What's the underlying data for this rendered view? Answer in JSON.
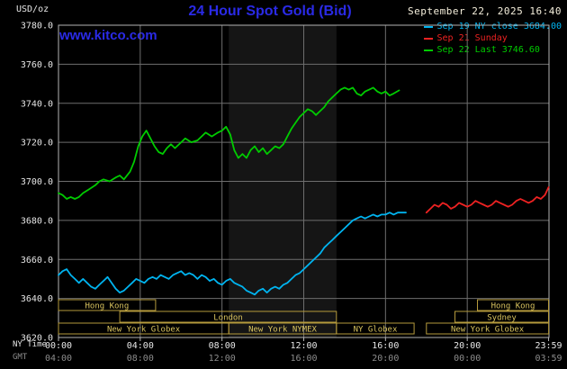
{
  "header": {
    "units": "USD/oz",
    "title": "24 Hour Spot Gold (Bid)",
    "datetime": "September 22, 2025 16:40",
    "watermark": "www.kitco.com"
  },
  "legend": {
    "items": [
      {
        "id": "sep19",
        "label": "Sep 19 NY close 3684.00",
        "color": "#00b4f0"
      },
      {
        "id": "sep21",
        "label": "Sep 21 Sunday",
        "color": "#ee2222"
      },
      {
        "id": "sep22",
        "label": "Sep 22 Last 3746.60",
        "color": "#00cc00"
      }
    ]
  },
  "axes": {
    "row_labels": {
      "ny": "NY Time",
      "gmt": "GMT"
    },
    "y_ticks": [
      {
        "value": 3780,
        "label": "3780.0"
      },
      {
        "value": 3760,
        "label": "3760.0"
      },
      {
        "value": 3740,
        "label": "3740.0"
      },
      {
        "value": 3720,
        "label": "3720.0"
      },
      {
        "value": 3700,
        "label": "3700.0"
      },
      {
        "value": 3680,
        "label": "3680.0"
      },
      {
        "value": 3660,
        "label": "3660.0"
      },
      {
        "value": 3640,
        "label": "3640.0"
      },
      {
        "value": 3620,
        "label": "3620.0"
      }
    ],
    "x_ticks": [
      {
        "hour": 0,
        "ny": "00:00",
        "gmt": "04:00"
      },
      {
        "hour": 4,
        "ny": "04:00",
        "gmt": "08:00"
      },
      {
        "hour": 8,
        "ny": "08:00",
        "gmt": "12:00"
      },
      {
        "hour": 12,
        "ny": "12:00",
        "gmt": "16:00"
      },
      {
        "hour": 16,
        "ny": "16:00",
        "gmt": "20:00"
      },
      {
        "hour": 20,
        "ny": "20:00",
        "gmt": "00:00"
      },
      {
        "hour": 23.98,
        "ny": "23:59",
        "gmt": "03:59"
      }
    ]
  },
  "sessions": [
    {
      "label": "Hong Kong",
      "row": 0,
      "start": 0.0,
      "end": 4.75
    },
    {
      "label": "Hong Kong",
      "row": 0,
      "start": 20.5,
      "end": 23.98
    },
    {
      "label": "London",
      "row": 1,
      "start": 3.0,
      "end": 13.6
    },
    {
      "label": "Sydney",
      "row": 1,
      "start": 19.4,
      "end": 23.98
    },
    {
      "label": "New York Globex",
      "row": 2,
      "start": 0.0,
      "end": 8.33
    },
    {
      "label": "New York NYMEX",
      "row": 2,
      "start": 8.33,
      "end": 13.6
    },
    {
      "label": "NY Globex",
      "row": 2,
      "start": 13.6,
      "end": 17.4
    },
    {
      "label": "New York Globex",
      "row": 2,
      "start": 18.0,
      "end": 23.98
    }
  ],
  "colors": {
    "grid": "#6e6e6e",
    "border": "#b5b5b5",
    "band": "#151515",
    "session_border": "#b59a3c",
    "session_text": "#d9c35e",
    "axis_text": "#e6e6e6",
    "gmt_text": "#8c8c8c",
    "title": "#2a2ae6",
    "link": "#2a2ae6",
    "datetime": "#f5efdc"
  },
  "chart_data": {
    "type": "line",
    "title": "24 Hour Spot Gold (Bid)",
    "xlabel": "NY Time",
    "ylabel": "USD/oz",
    "ylim": [
      3620,
      3780
    ],
    "xlim_hours": [
      0,
      24
    ],
    "grid": true,
    "legend_position": "top-right",
    "nymex_band_hours": [
      8.33,
      13.6
    ],
    "ny_close": 3684.0,
    "last": 3746.6,
    "series": [
      {
        "id": "sep19",
        "name": "Sep 19 NY close",
        "color": "#00b4f0",
        "points": [
          [
            0,
            3652
          ],
          [
            0.2,
            3654
          ],
          [
            0.4,
            3655
          ],
          [
            0.6,
            3652
          ],
          [
            0.8,
            3650
          ],
          [
            1.0,
            3648
          ],
          [
            1.2,
            3650
          ],
          [
            1.4,
            3648
          ],
          [
            1.6,
            3646
          ],
          [
            1.8,
            3645
          ],
          [
            2.0,
            3647
          ],
          [
            2.2,
            3649
          ],
          [
            2.4,
            3651
          ],
          [
            2.6,
            3648
          ],
          [
            2.8,
            3645
          ],
          [
            3.0,
            3643
          ],
          [
            3.2,
            3644
          ],
          [
            3.4,
            3646
          ],
          [
            3.6,
            3648
          ],
          [
            3.8,
            3650
          ],
          [
            4.0,
            3649
          ],
          [
            4.2,
            3648
          ],
          [
            4.4,
            3650
          ],
          [
            4.6,
            3651
          ],
          [
            4.8,
            3650
          ],
          [
            5.0,
            3652
          ],
          [
            5.2,
            3651
          ],
          [
            5.4,
            3650
          ],
          [
            5.6,
            3652
          ],
          [
            5.8,
            3653
          ],
          [
            6.0,
            3654
          ],
          [
            6.2,
            3652
          ],
          [
            6.4,
            3653
          ],
          [
            6.6,
            3652
          ],
          [
            6.8,
            3650
          ],
          [
            7.0,
            3652
          ],
          [
            7.2,
            3651
          ],
          [
            7.4,
            3649
          ],
          [
            7.6,
            3650
          ],
          [
            7.8,
            3648
          ],
          [
            8.0,
            3647
          ],
          [
            8.2,
            3649
          ],
          [
            8.4,
            3650
          ],
          [
            8.6,
            3648
          ],
          [
            8.8,
            3647
          ],
          [
            9.0,
            3646
          ],
          [
            9.2,
            3644
          ],
          [
            9.4,
            3643
          ],
          [
            9.6,
            3642
          ],
          [
            9.8,
            3644
          ],
          [
            10.0,
            3645
          ],
          [
            10.2,
            3643
          ],
          [
            10.4,
            3645
          ],
          [
            10.6,
            3646
          ],
          [
            10.8,
            3645
          ],
          [
            11.0,
            3647
          ],
          [
            11.2,
            3648
          ],
          [
            11.4,
            3650
          ],
          [
            11.6,
            3652
          ],
          [
            11.8,
            3653
          ],
          [
            12.0,
            3655
          ],
          [
            12.2,
            3657
          ],
          [
            12.4,
            3659
          ],
          [
            12.6,
            3661
          ],
          [
            12.8,
            3663
          ],
          [
            13.0,
            3666
          ],
          [
            13.2,
            3668
          ],
          [
            13.4,
            3670
          ],
          [
            13.6,
            3672
          ],
          [
            13.8,
            3674
          ],
          [
            14.0,
            3676
          ],
          [
            14.2,
            3678
          ],
          [
            14.4,
            3680
          ],
          [
            14.6,
            3681
          ],
          [
            14.8,
            3682
          ],
          [
            15.0,
            3681
          ],
          [
            15.2,
            3682
          ],
          [
            15.4,
            3683
          ],
          [
            15.6,
            3682
          ],
          [
            15.8,
            3683
          ],
          [
            16.0,
            3683
          ],
          [
            16.2,
            3684
          ],
          [
            16.4,
            3683
          ],
          [
            16.6,
            3684
          ],
          [
            16.8,
            3684
          ],
          [
            17.0,
            3684
          ]
        ]
      },
      {
        "id": "sep21",
        "name": "Sep 21 Sunday",
        "color": "#ee2222",
        "points": [
          [
            18.0,
            3684
          ],
          [
            18.2,
            3686
          ],
          [
            18.4,
            3688
          ],
          [
            18.6,
            3687
          ],
          [
            18.8,
            3689
          ],
          [
            19.0,
            3688
          ],
          [
            19.2,
            3686
          ],
          [
            19.4,
            3687
          ],
          [
            19.6,
            3689
          ],
          [
            19.8,
            3688
          ],
          [
            20.0,
            3687
          ],
          [
            20.2,
            3688
          ],
          [
            20.4,
            3690
          ],
          [
            20.6,
            3689
          ],
          [
            20.8,
            3688
          ],
          [
            21.0,
            3687
          ],
          [
            21.2,
            3688
          ],
          [
            21.4,
            3690
          ],
          [
            21.6,
            3689
          ],
          [
            21.8,
            3688
          ],
          [
            22.0,
            3687
          ],
          [
            22.2,
            3688
          ],
          [
            22.4,
            3690
          ],
          [
            22.6,
            3691
          ],
          [
            22.8,
            3690
          ],
          [
            23.0,
            3689
          ],
          [
            23.2,
            3690
          ],
          [
            23.4,
            3692
          ],
          [
            23.6,
            3691
          ],
          [
            23.8,
            3693
          ],
          [
            23.98,
            3697
          ]
        ]
      },
      {
        "id": "sep22",
        "name": "Sep 22 Last",
        "color": "#00cc00",
        "points": [
          [
            0,
            3694
          ],
          [
            0.2,
            3693
          ],
          [
            0.4,
            3691
          ],
          [
            0.6,
            3692
          ],
          [
            0.8,
            3691
          ],
          [
            1.0,
            3692
          ],
          [
            1.2,
            3694
          ],
          [
            1.5,
            3696
          ],
          [
            1.8,
            3698
          ],
          [
            2.0,
            3700
          ],
          [
            2.2,
            3701
          ],
          [
            2.5,
            3700
          ],
          [
            2.8,
            3702
          ],
          [
            3.0,
            3703
          ],
          [
            3.2,
            3701
          ],
          [
            3.5,
            3705
          ],
          [
            3.7,
            3710
          ],
          [
            3.9,
            3718
          ],
          [
            4.1,
            3723
          ],
          [
            4.3,
            3726
          ],
          [
            4.5,
            3722
          ],
          [
            4.7,
            3718
          ],
          [
            4.9,
            3715
          ],
          [
            5.1,
            3714
          ],
          [
            5.3,
            3717
          ],
          [
            5.5,
            3719
          ],
          [
            5.7,
            3717
          ],
          [
            6.0,
            3720
          ],
          [
            6.2,
            3722
          ],
          [
            6.5,
            3720
          ],
          [
            6.8,
            3721
          ],
          [
            7.0,
            3723
          ],
          [
            7.2,
            3725
          ],
          [
            7.5,
            3723
          ],
          [
            7.8,
            3725
          ],
          [
            8.0,
            3726
          ],
          [
            8.2,
            3728
          ],
          [
            8.4,
            3724
          ],
          [
            8.6,
            3716
          ],
          [
            8.8,
            3712
          ],
          [
            9.0,
            3714
          ],
          [
            9.2,
            3712
          ],
          [
            9.4,
            3716
          ],
          [
            9.6,
            3718
          ],
          [
            9.8,
            3715
          ],
          [
            10.0,
            3717
          ],
          [
            10.2,
            3714
          ],
          [
            10.4,
            3716
          ],
          [
            10.6,
            3718
          ],
          [
            10.8,
            3717
          ],
          [
            11.0,
            3719
          ],
          [
            11.2,
            3723
          ],
          [
            11.4,
            3727
          ],
          [
            11.6,
            3730
          ],
          [
            11.8,
            3733
          ],
          [
            12.0,
            3735
          ],
          [
            12.2,
            3737
          ],
          [
            12.4,
            3736
          ],
          [
            12.6,
            3734
          ],
          [
            12.8,
            3736
          ],
          [
            13.0,
            3738
          ],
          [
            13.2,
            3741
          ],
          [
            13.4,
            3743
          ],
          [
            13.6,
            3745
          ],
          [
            13.8,
            3747
          ],
          [
            14.0,
            3748
          ],
          [
            14.2,
            3747
          ],
          [
            14.4,
            3748
          ],
          [
            14.6,
            3745
          ],
          [
            14.8,
            3744
          ],
          [
            15.0,
            3746
          ],
          [
            15.2,
            3747
          ],
          [
            15.4,
            3748
          ],
          [
            15.6,
            3746
          ],
          [
            15.8,
            3745
          ],
          [
            16.0,
            3746
          ],
          [
            16.2,
            3744
          ],
          [
            16.4,
            3745
          ],
          [
            16.67,
            3746.6
          ]
        ]
      }
    ]
  }
}
